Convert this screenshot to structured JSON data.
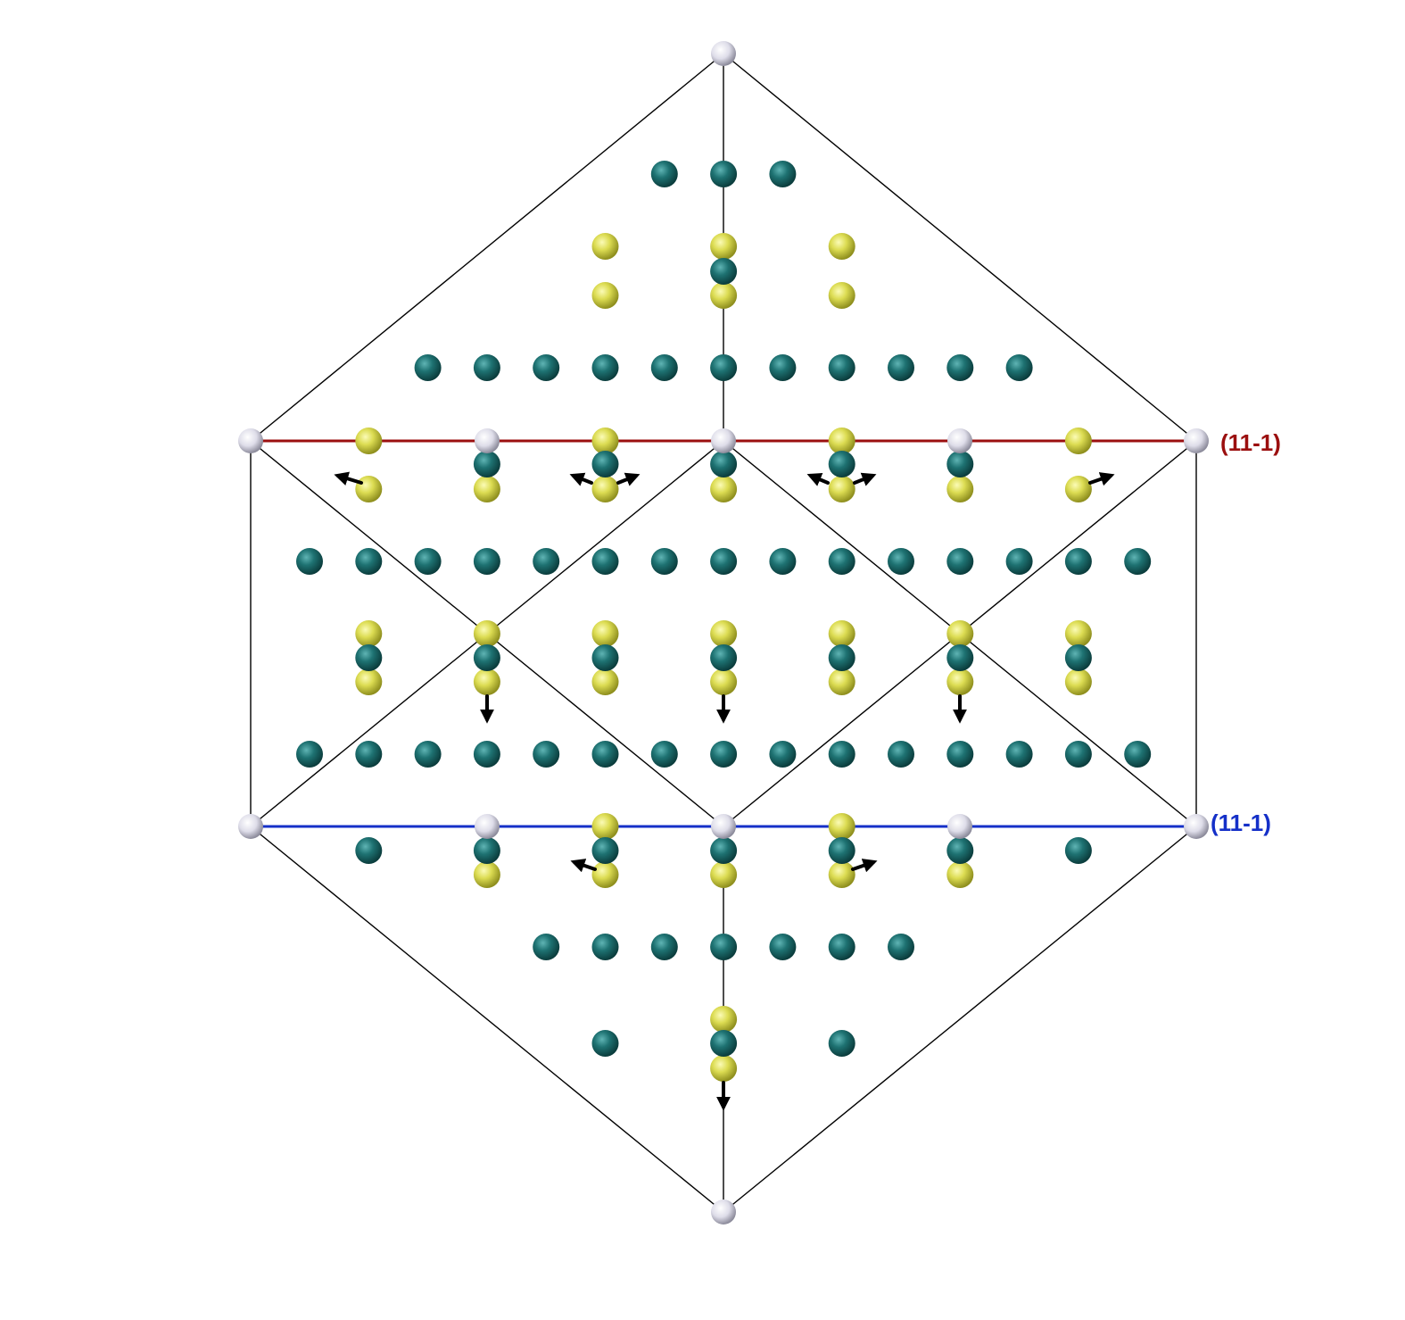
{
  "colors": {
    "background": "#ffffff",
    "cell_edge": "#000000",
    "plane_top": "#9b0f0f",
    "plane_bottom": "#1530c8",
    "atom_corner": "#e4e3ee",
    "atom_teal": "#1b6b6b",
    "atom_yellow": "#dcdc52",
    "arrow": "#000000"
  },
  "planes": {
    "top": {
      "label": "(11-1)",
      "color": "#9b0f0f"
    },
    "bottom": {
      "label": "(11-1)",
      "color": "#1530c8"
    }
  },
  "atom_kinds": [
    "corner",
    "teal",
    "yellow"
  ],
  "arrow_directions": [
    "left-down",
    "right-down",
    "down"
  ]
}
